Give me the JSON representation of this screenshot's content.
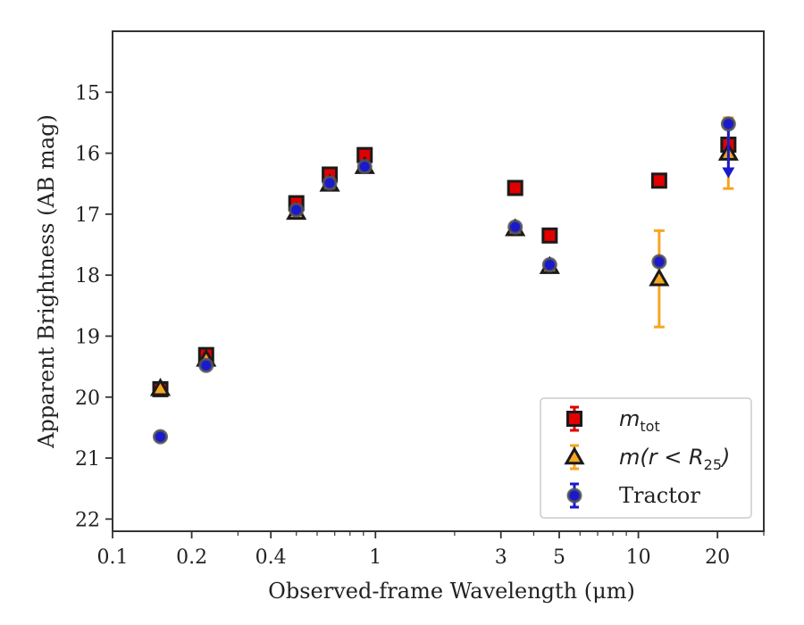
{
  "chart_data": {
    "type": "scatter",
    "xlabel": "Observed-frame Wavelength (μm)",
    "ylabel": "Apparent Brightness (AB mag)",
    "x_scale": "log",
    "xlim": [
      0.1,
      30
    ],
    "ylim": [
      22.2,
      14.0
    ],
    "y_inverted": true,
    "x_ticks": [
      {
        "value": 0.1,
        "label": "0.1"
      },
      {
        "value": 0.2,
        "label": "0.2"
      },
      {
        "value": 0.4,
        "label": "0.4"
      },
      {
        "value": 1,
        "label": "1"
      },
      {
        "value": 3,
        "label": "3"
      },
      {
        "value": 5,
        "label": "5"
      },
      {
        "value": 10,
        "label": "10"
      },
      {
        "value": 20,
        "label": "20"
      }
    ],
    "x_minor_ticks": [
      0.3,
      0.5,
      0.6,
      0.7,
      0.8,
      0.9,
      2,
      4,
      6,
      7,
      8,
      9,
      30
    ],
    "y_ticks": [
      {
        "value": 15,
        "label": "15"
      },
      {
        "value": 16,
        "label": "16"
      },
      {
        "value": 17,
        "label": "17"
      },
      {
        "value": 18,
        "label": "18"
      },
      {
        "value": 19,
        "label": "19"
      },
      {
        "value": 20,
        "label": "20"
      },
      {
        "value": 21,
        "label": "21"
      },
      {
        "value": 22,
        "label": "22"
      }
    ],
    "grid": false,
    "legend_position": "bottom-right",
    "series": [
      {
        "name": "m_tot",
        "legend_main": "m",
        "legend_sub": "tot",
        "marker": "square",
        "fill": "#e00000",
        "error_color": "#e00000",
        "points": [
          {
            "x": 0.152,
            "y": 19.87,
            "err": 0
          },
          {
            "x": 0.227,
            "y": 19.31,
            "err": 0
          },
          {
            "x": 0.5,
            "y": 16.82,
            "err": 0
          },
          {
            "x": 0.67,
            "y": 16.35,
            "err": 0
          },
          {
            "x": 0.91,
            "y": 16.03,
            "err": 0
          },
          {
            "x": 3.4,
            "y": 16.57,
            "err": 0
          },
          {
            "x": 4.6,
            "y": 17.35,
            "err": 0
          },
          {
            "x": 12.0,
            "y": 16.45,
            "err": 0
          },
          {
            "x": 22.0,
            "y": 15.86,
            "err": 0
          }
        ]
      },
      {
        "name": "m(r < R_25)",
        "legend_main": "m(r < R",
        "legend_sub": "25",
        "legend_end": ")",
        "marker": "triangle",
        "fill": "#f5a623",
        "error_color": "#f5a623",
        "points": [
          {
            "x": 0.152,
            "y": 19.86,
            "err": 0
          },
          {
            "x": 0.227,
            "y": 19.38,
            "err": 0
          },
          {
            "x": 0.5,
            "y": 16.97,
            "err": 0
          },
          {
            "x": 0.67,
            "y": 16.51,
            "err": 0
          },
          {
            "x": 0.91,
            "y": 16.22,
            "err": 0
          },
          {
            "x": 3.4,
            "y": 17.24,
            "err": 0
          },
          {
            "x": 4.6,
            "y": 17.86,
            "err": 0
          },
          {
            "x": 12.0,
            "y": 18.06,
            "err": 0.79
          },
          {
            "x": 22.0,
            "y": 16.0,
            "err": 0.58
          }
        ]
      },
      {
        "name": "Tractor",
        "legend_main": "Tractor",
        "marker": "circle",
        "fill": "#1a1acc",
        "error_color": "#1a1acc",
        "points": [
          {
            "x": 0.152,
            "y": 20.65,
            "err": 0
          },
          {
            "x": 0.227,
            "y": 19.48,
            "err": 0
          },
          {
            "x": 0.5,
            "y": 16.93,
            "err": 0
          },
          {
            "x": 0.67,
            "y": 16.49,
            "err": 0
          },
          {
            "x": 0.91,
            "y": 16.22,
            "err": 0
          },
          {
            "x": 3.4,
            "y": 17.21,
            "err": 0
          },
          {
            "x": 4.6,
            "y": 17.83,
            "err": 0
          },
          {
            "x": 12.0,
            "y": 17.78,
            "err": 0
          },
          {
            "x": 22.0,
            "y": 15.52,
            "err": 0,
            "upper_limit_to": 16.35
          }
        ]
      }
    ]
  }
}
